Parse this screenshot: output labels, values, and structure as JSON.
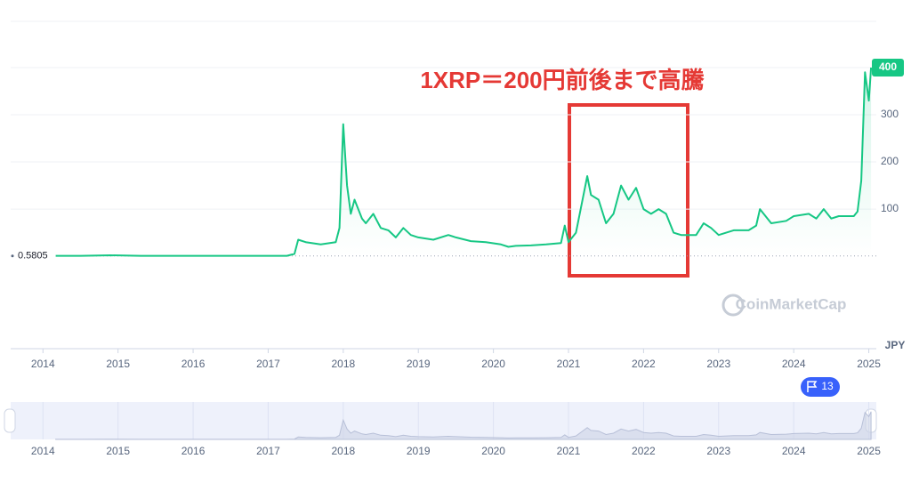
{
  "chart_data": {
    "type": "line",
    "annotation": "1XRP＝200円前後まで高騰",
    "watermark": "CoinMarketCap",
    "currency": "JPY",
    "reference_price": 0.5805,
    "price_tag": 400,
    "events_count": 13,
    "color": "#16c784",
    "x": [
      2014.17,
      2014.5,
      2014.9,
      2015.3,
      2016.0,
      2016.8,
      2017.25,
      2017.35,
      2017.4,
      2017.5,
      2017.7,
      2017.9,
      2017.95,
      2018.0,
      2018.05,
      2018.1,
      2018.15,
      2018.25,
      2018.3,
      2018.4,
      2018.5,
      2018.6,
      2018.7,
      2018.8,
      2018.9,
      2019.0,
      2019.2,
      2019.4,
      2019.5,
      2019.7,
      2019.9,
      2020.1,
      2020.2,
      2020.3,
      2020.5,
      2020.7,
      2020.9,
      2020.95,
      2021.0,
      2021.1,
      2021.25,
      2021.3,
      2021.4,
      2021.5,
      2021.6,
      2021.7,
      2021.8,
      2021.9,
      2022.0,
      2022.1,
      2022.2,
      2022.3,
      2022.4,
      2022.5,
      2022.7,
      2022.8,
      2022.9,
      2023.0,
      2023.2,
      2023.4,
      2023.5,
      2023.55,
      2023.7,
      2023.9,
      2024.0,
      2024.2,
      2024.3,
      2024.4,
      2024.5,
      2024.6,
      2024.8,
      2024.85,
      2024.9,
      2024.95,
      2025.0,
      2025.03
    ],
    "values": [
      1,
      1,
      2,
      1,
      1,
      1,
      1,
      5,
      35,
      30,
      25,
      30,
      60,
      280,
      150,
      90,
      120,
      80,
      70,
      90,
      60,
      55,
      40,
      60,
      45,
      40,
      35,
      45,
      40,
      32,
      30,
      25,
      20,
      22,
      23,
      25,
      28,
      65,
      30,
      50,
      170,
      130,
      120,
      70,
      90,
      150,
      120,
      145,
      100,
      90,
      100,
      90,
      50,
      45,
      45,
      70,
      60,
      45,
      55,
      55,
      65,
      100,
      70,
      75,
      85,
      90,
      80,
      100,
      80,
      85,
      85,
      95,
      160,
      390,
      330,
      400
    ],
    "xlim": [
      2013.57,
      2025.1
    ],
    "xticks": [
      2014,
      2015,
      2016,
      2017,
      2018,
      2019,
      2020,
      2021,
      2022,
      2023,
      2024,
      2025
    ],
    "ylim": [
      -196,
      500
    ],
    "yticks": [
      100,
      200,
      300,
      400
    ],
    "grid": true
  }
}
